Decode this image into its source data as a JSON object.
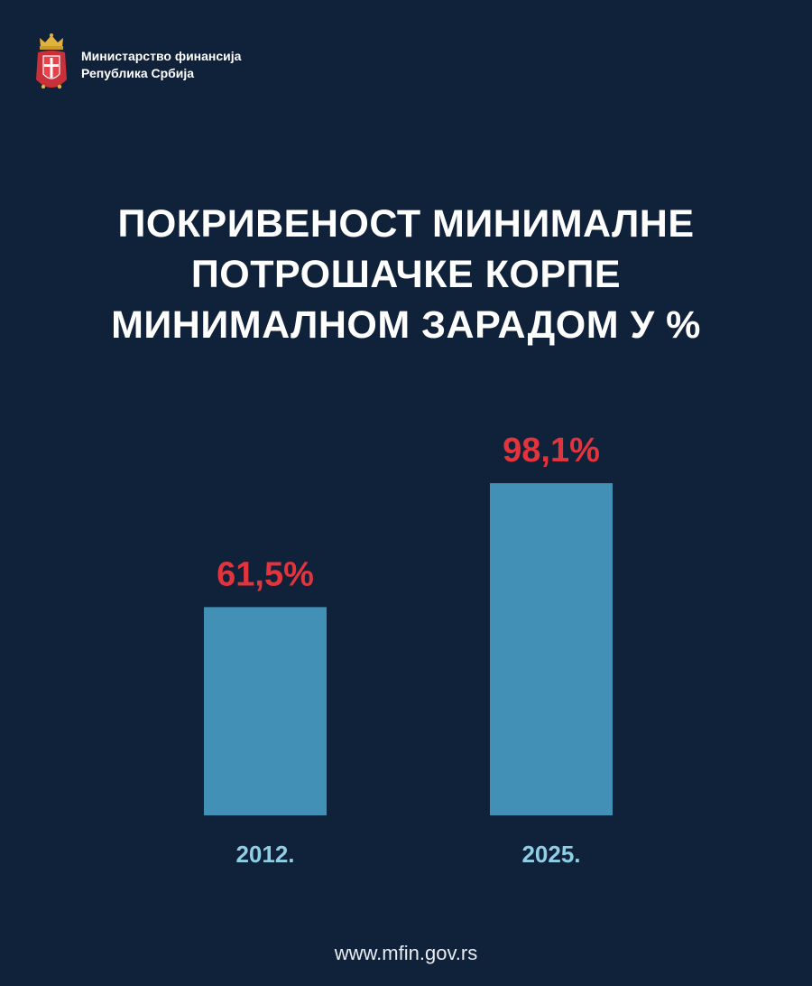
{
  "header": {
    "ministry_line1": "Министарство финансија",
    "ministry_line2": "Република Србија"
  },
  "title_lines": [
    "ПОКРИВЕНОСТ МИНИМАЛНЕ",
    "ПОТРОШАЧКЕ КОРПЕ",
    "МИНИМАЛНОМ ЗАРАДОМ У %"
  ],
  "chart_data": {
    "type": "bar",
    "title": "ПОКРИВЕНОСТ МИНИМАЛНЕ ПОТРОШАЧКЕ КОРПЕ МИНИМАЛНОМ ЗАРАДОМ У %",
    "categories": [
      "2012.",
      "2025."
    ],
    "values": [
      61.5,
      98.1
    ],
    "value_labels": [
      "61,5%",
      "98,1%"
    ],
    "xlabel": "",
    "ylabel": "",
    "grid": false,
    "colors": {
      "bar": "#4290b5",
      "value_label": "#e1343d",
      "category_label": "#8fcfe6",
      "background": "#10213a"
    }
  },
  "footer": {
    "url": "www.mfin.gov.rs"
  }
}
